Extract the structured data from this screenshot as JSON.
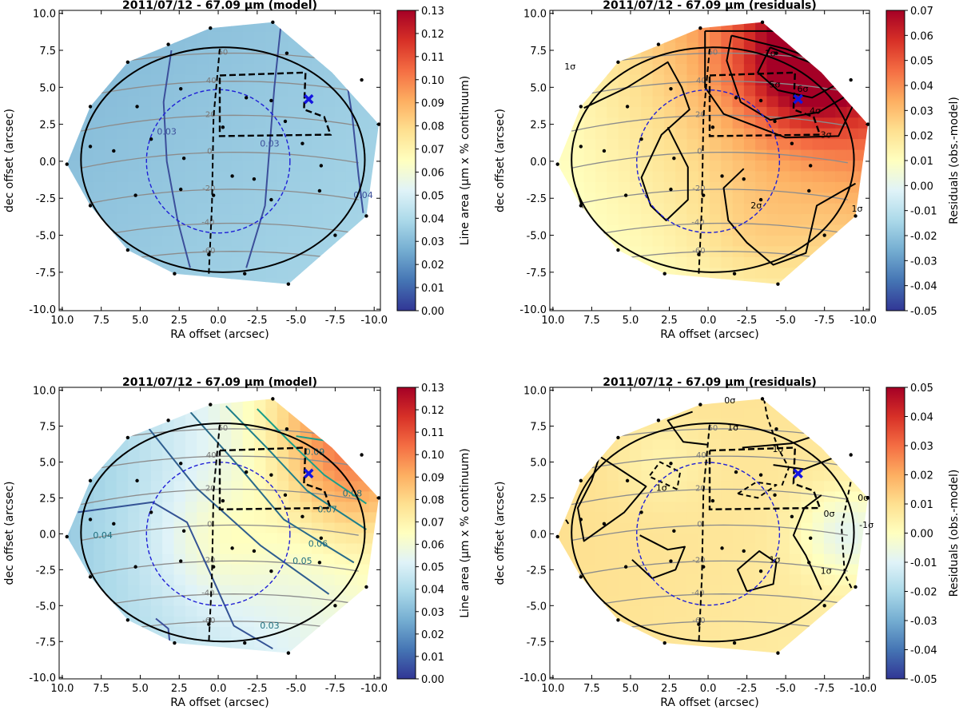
{
  "chart_data": [
    {
      "type": "heatmap",
      "title": "2011/07/12 - 67.09 µm (model)",
      "xlabel": "RA offset (arcsec)",
      "ylabel": "dec offset (arcsec)",
      "xlim": [
        10.2,
        -10.4
      ],
      "ylim": [
        -10.1,
        10.2
      ],
      "xticks": [
        "10.0",
        "7.5",
        "5.0",
        "2.5",
        "0.0",
        "-2.5",
        "-5.0",
        "-7.5",
        "-10.0"
      ],
      "yticks": [
        "10.0",
        "7.5",
        "5.0",
        "2.5",
        "0.0",
        "-2.5",
        "-5.0",
        "-7.5",
        "-10.0"
      ],
      "colorbar": {
        "label": "Line area (µm x % continuum)",
        "colormap": "RdYlBu_r",
        "range": [
          0.0,
          0.13
        ],
        "ticks": [
          "0.00",
          "0.01",
          "0.02",
          "0.03",
          "0.04",
          "0.05",
          "0.06",
          "0.07",
          "0.08",
          "0.09",
          "0.10",
          "0.11",
          "0.12",
          "0.13"
        ]
      },
      "contour_labels": [
        "0.03",
        "0.03",
        "0.04"
      ],
      "latitude_labels": [
        "60",
        "40",
        "20",
        "0",
        "-20",
        "-40",
        "-60"
      ]
    },
    {
      "type": "heatmap",
      "title": "2011/07/12 - 67.09 µm (residuals)",
      "xlabel": "RA offset (arcsec)",
      "ylabel": "dec offset (arcsec)",
      "xlim": [
        10.2,
        -10.4
      ],
      "ylim": [
        -10.1,
        10.2
      ],
      "xticks": [
        "10.0",
        "7.5",
        "5.0",
        "2.5",
        "0.0",
        "-2.5",
        "-5.0",
        "-7.5",
        "-10.0"
      ],
      "yticks": [
        "10.0",
        "7.5",
        "5.0",
        "2.5",
        "0.0",
        "-2.5",
        "-5.0",
        "-7.5",
        "-10.0"
      ],
      "colorbar": {
        "label": "Residuals (obs.-model)",
        "colormap": "RdYlBu_r",
        "range": [
          -0.05,
          0.07
        ],
        "ticks": [
          "-0.05",
          "-0.04",
          "-0.03",
          "-0.02",
          "-0.01",
          "0.00",
          "0.01",
          "0.02",
          "0.03",
          "0.04",
          "0.05",
          "0.06",
          "0.07"
        ]
      },
      "contour_labels": [
        "1σ",
        "1σ",
        "2σ",
        "3σ",
        "4σ",
        "5σ",
        "6σ",
        "1σ"
      ],
      "latitude_labels": [
        "60",
        "40",
        "20",
        "0",
        "-20",
        "-40",
        "-60"
      ]
    },
    {
      "type": "heatmap",
      "title": "2011/07/12 - 67.09 µm (model)",
      "xlabel": "RA offset (arcsec)",
      "ylabel": "dec offset (arcsec)",
      "xlim": [
        10.2,
        -10.4
      ],
      "ylim": [
        -10.1,
        10.2
      ],
      "xticks": [
        "10.0",
        "7.5",
        "5.0",
        "2.5",
        "0.0",
        "-2.5",
        "-5.0",
        "-7.5",
        "-10.0"
      ],
      "yticks": [
        "10.0",
        "7.5",
        "5.0",
        "2.5",
        "0.0",
        "-2.5",
        "-5.0",
        "-7.5",
        "-10.0"
      ],
      "colorbar": {
        "label": "Line area (µm x % continuum)",
        "colormap": "RdYlBu_r",
        "range": [
          0.0,
          0.13
        ],
        "ticks": [
          "0.00",
          "0.01",
          "0.02",
          "0.03",
          "0.04",
          "0.05",
          "0.06",
          "0.07",
          "0.08",
          "0.09",
          "0.10",
          "0.11",
          "0.12",
          "0.13"
        ]
      },
      "contour_labels": [
        "0.04",
        "0.05",
        "0.06",
        "0.07",
        "0.08",
        "0.09",
        "0.03"
      ],
      "latitude_labels": [
        "60",
        "40",
        "20",
        "0",
        "-20",
        "-40",
        "-60"
      ]
    },
    {
      "type": "heatmap",
      "title": "2011/07/12 - 67.09 µm (residuals)",
      "xlabel": "RA offset (arcsec)",
      "ylabel": "dec offset (arcsec)",
      "xlim": [
        10.2,
        -10.4
      ],
      "ylim": [
        -10.1,
        10.2
      ],
      "xticks": [
        "10.0",
        "7.5",
        "5.0",
        "2.5",
        "0.0",
        "-2.5",
        "-5.0",
        "-7.5",
        "-10.0"
      ],
      "yticks": [
        "10.0",
        "7.5",
        "5.0",
        "2.5",
        "0.0",
        "-2.5",
        "-5.0",
        "-7.5",
        "-10.0"
      ],
      "colorbar": {
        "label": "Residuals (obs.-model)",
        "colormap": "RdYlBu_r",
        "range": [
          -0.05,
          0.05
        ],
        "ticks": [
          "-0.05",
          "-0.04",
          "-0.03",
          "-0.02",
          "-0.01",
          "0.00",
          "0.01",
          "0.02",
          "0.03",
          "0.04",
          "0.05"
        ]
      },
      "contour_labels": [
        "0σ",
        "1σ",
        "1σ",
        "1σ",
        "0σ",
        "1σ",
        "1σ",
        "0σ",
        "-1σ"
      ],
      "latitude_labels": [
        "60",
        "40",
        "20",
        "0",
        "-20",
        "-40",
        "-60"
      ]
    }
  ],
  "colors": {
    "planet_limb": "#000000",
    "grid_lines": "#8c8c8c",
    "beam_circle": "#1f1fd6",
    "marker_x": "#1414e0",
    "scan_box": "#000000"
  },
  "sample_points": [
    [
      8.2,
      3.7
    ],
    [
      5.8,
      6.7
    ],
    [
      3.2,
      7.9
    ],
    [
      0.5,
      9.0
    ],
    [
      -3.5,
      9.4
    ],
    [
      -4.4,
      7.3
    ],
    [
      -9.2,
      5.5
    ],
    [
      -10.3,
      2.5
    ],
    [
      -9.5,
      -3.7
    ],
    [
      -7.5,
      -5.0
    ],
    [
      -4.5,
      -8.3
    ],
    [
      -1.7,
      -7.6
    ],
    [
      0.6,
      -6.3
    ],
    [
      2.8,
      -7.6
    ],
    [
      5.8,
      -6.0
    ],
    [
      8.2,
      -3.0
    ],
    [
      9.7,
      -0.2
    ],
    [
      8.2,
      1.0
    ],
    [
      5.2,
      3.7
    ],
    [
      2.4,
      4.9
    ],
    [
      -0.3,
      2.3
    ],
    [
      -1.8,
      4.3
    ],
    [
      -3.4,
      4.1
    ],
    [
      -4.3,
      2.7
    ],
    [
      -5.4,
      1.2
    ],
    [
      -6.6,
      -0.3
    ],
    [
      -2.3,
      -1.2
    ],
    [
      -3.4,
      -2.6
    ],
    [
      0.3,
      -2.3
    ],
    [
      2.4,
      -1.9
    ],
    [
      5.3,
      -2.3
    ],
    [
      6.7,
      0.7
    ],
    [
      4.3,
      1.5
    ],
    [
      2.2,
      0.2
    ],
    [
      -0.9,
      -1.0
    ],
    [
      -6.5,
      -2.0
    ]
  ]
}
